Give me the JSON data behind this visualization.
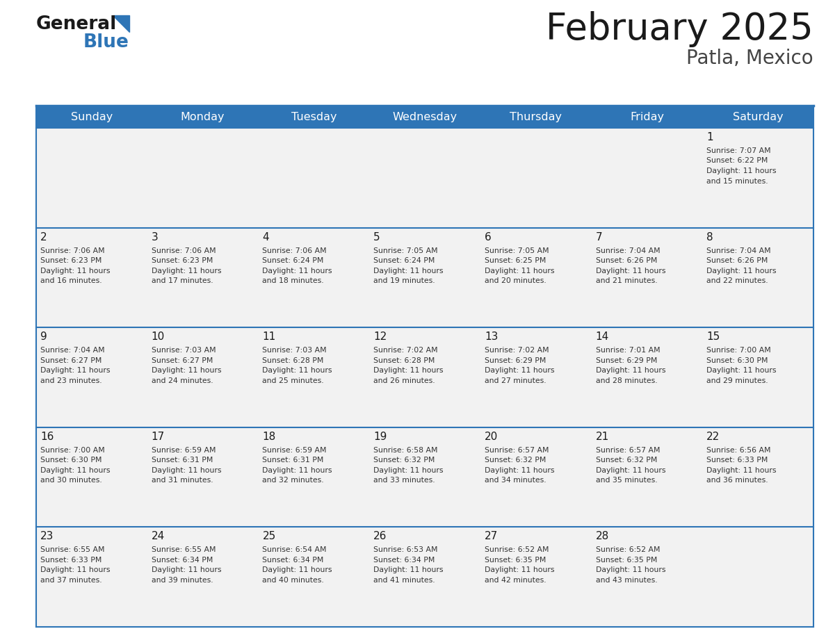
{
  "title": "February 2025",
  "subtitle": "Patla, Mexico",
  "header_bg": "#2E75B6",
  "header_fg": "#FFFFFF",
  "cell_bg": "#F2F2F2",
  "border_color": "#2E75B6",
  "text_color": "#333333",
  "days_of_week": [
    "Sunday",
    "Monday",
    "Tuesday",
    "Wednesday",
    "Thursday",
    "Friday",
    "Saturday"
  ],
  "calendar_data": [
    [
      {
        "day": "",
        "sunrise": "",
        "sunset": "",
        "daylight": ""
      },
      {
        "day": "",
        "sunrise": "",
        "sunset": "",
        "daylight": ""
      },
      {
        "day": "",
        "sunrise": "",
        "sunset": "",
        "daylight": ""
      },
      {
        "day": "",
        "sunrise": "",
        "sunset": "",
        "daylight": ""
      },
      {
        "day": "",
        "sunrise": "",
        "sunset": "",
        "daylight": ""
      },
      {
        "day": "",
        "sunrise": "",
        "sunset": "",
        "daylight": ""
      },
      {
        "day": "1",
        "sunrise": "7:07 AM",
        "sunset": "6:22 PM",
        "daylight_l1": "11 hours",
        "daylight_l2": "and 15 minutes."
      }
    ],
    [
      {
        "day": "2",
        "sunrise": "7:06 AM",
        "sunset": "6:23 PM",
        "daylight_l1": "11 hours",
        "daylight_l2": "and 16 minutes."
      },
      {
        "day": "3",
        "sunrise": "7:06 AM",
        "sunset": "6:23 PM",
        "daylight_l1": "11 hours",
        "daylight_l2": "and 17 minutes."
      },
      {
        "day": "4",
        "sunrise": "7:06 AM",
        "sunset": "6:24 PM",
        "daylight_l1": "11 hours",
        "daylight_l2": "and 18 minutes."
      },
      {
        "day": "5",
        "sunrise": "7:05 AM",
        "sunset": "6:24 PM",
        "daylight_l1": "11 hours",
        "daylight_l2": "and 19 minutes."
      },
      {
        "day": "6",
        "sunrise": "7:05 AM",
        "sunset": "6:25 PM",
        "daylight_l1": "11 hours",
        "daylight_l2": "and 20 minutes."
      },
      {
        "day": "7",
        "sunrise": "7:04 AM",
        "sunset": "6:26 PM",
        "daylight_l1": "11 hours",
        "daylight_l2": "and 21 minutes."
      },
      {
        "day": "8",
        "sunrise": "7:04 AM",
        "sunset": "6:26 PM",
        "daylight_l1": "11 hours",
        "daylight_l2": "and 22 minutes."
      }
    ],
    [
      {
        "day": "9",
        "sunrise": "7:04 AM",
        "sunset": "6:27 PM",
        "daylight_l1": "11 hours",
        "daylight_l2": "and 23 minutes."
      },
      {
        "day": "10",
        "sunrise": "7:03 AM",
        "sunset": "6:27 PM",
        "daylight_l1": "11 hours",
        "daylight_l2": "and 24 minutes."
      },
      {
        "day": "11",
        "sunrise": "7:03 AM",
        "sunset": "6:28 PM",
        "daylight_l1": "11 hours",
        "daylight_l2": "and 25 minutes."
      },
      {
        "day": "12",
        "sunrise": "7:02 AM",
        "sunset": "6:28 PM",
        "daylight_l1": "11 hours",
        "daylight_l2": "and 26 minutes."
      },
      {
        "day": "13",
        "sunrise": "7:02 AM",
        "sunset": "6:29 PM",
        "daylight_l1": "11 hours",
        "daylight_l2": "and 27 minutes."
      },
      {
        "day": "14",
        "sunrise": "7:01 AM",
        "sunset": "6:29 PM",
        "daylight_l1": "11 hours",
        "daylight_l2": "and 28 minutes."
      },
      {
        "day": "15",
        "sunrise": "7:00 AM",
        "sunset": "6:30 PM",
        "daylight_l1": "11 hours",
        "daylight_l2": "and 29 minutes."
      }
    ],
    [
      {
        "day": "16",
        "sunrise": "7:00 AM",
        "sunset": "6:30 PM",
        "daylight_l1": "11 hours",
        "daylight_l2": "and 30 minutes."
      },
      {
        "day": "17",
        "sunrise": "6:59 AM",
        "sunset": "6:31 PM",
        "daylight_l1": "11 hours",
        "daylight_l2": "and 31 minutes."
      },
      {
        "day": "18",
        "sunrise": "6:59 AM",
        "sunset": "6:31 PM",
        "daylight_l1": "11 hours",
        "daylight_l2": "and 32 minutes."
      },
      {
        "day": "19",
        "sunrise": "6:58 AM",
        "sunset": "6:32 PM",
        "daylight_l1": "11 hours",
        "daylight_l2": "and 33 minutes."
      },
      {
        "day": "20",
        "sunrise": "6:57 AM",
        "sunset": "6:32 PM",
        "daylight_l1": "11 hours",
        "daylight_l2": "and 34 minutes."
      },
      {
        "day": "21",
        "sunrise": "6:57 AM",
        "sunset": "6:32 PM",
        "daylight_l1": "11 hours",
        "daylight_l2": "and 35 minutes."
      },
      {
        "day": "22",
        "sunrise": "6:56 AM",
        "sunset": "6:33 PM",
        "daylight_l1": "11 hours",
        "daylight_l2": "and 36 minutes."
      }
    ],
    [
      {
        "day": "23",
        "sunrise": "6:55 AM",
        "sunset": "6:33 PM",
        "daylight_l1": "11 hours",
        "daylight_l2": "and 37 minutes."
      },
      {
        "day": "24",
        "sunrise": "6:55 AM",
        "sunset": "6:34 PM",
        "daylight_l1": "11 hours",
        "daylight_l2": "and 39 minutes."
      },
      {
        "day": "25",
        "sunrise": "6:54 AM",
        "sunset": "6:34 PM",
        "daylight_l1": "11 hours",
        "daylight_l2": "and 40 minutes."
      },
      {
        "day": "26",
        "sunrise": "6:53 AM",
        "sunset": "6:34 PM",
        "daylight_l1": "11 hours",
        "daylight_l2": "and 41 minutes."
      },
      {
        "day": "27",
        "sunrise": "6:52 AM",
        "sunset": "6:35 PM",
        "daylight_l1": "11 hours",
        "daylight_l2": "and 42 minutes."
      },
      {
        "day": "28",
        "sunrise": "6:52 AM",
        "sunset": "6:35 PM",
        "daylight_l1": "11 hours",
        "daylight_l2": "and 43 minutes."
      },
      {
        "day": "",
        "sunrise": "",
        "sunset": "",
        "daylight_l1": "",
        "daylight_l2": ""
      }
    ]
  ]
}
